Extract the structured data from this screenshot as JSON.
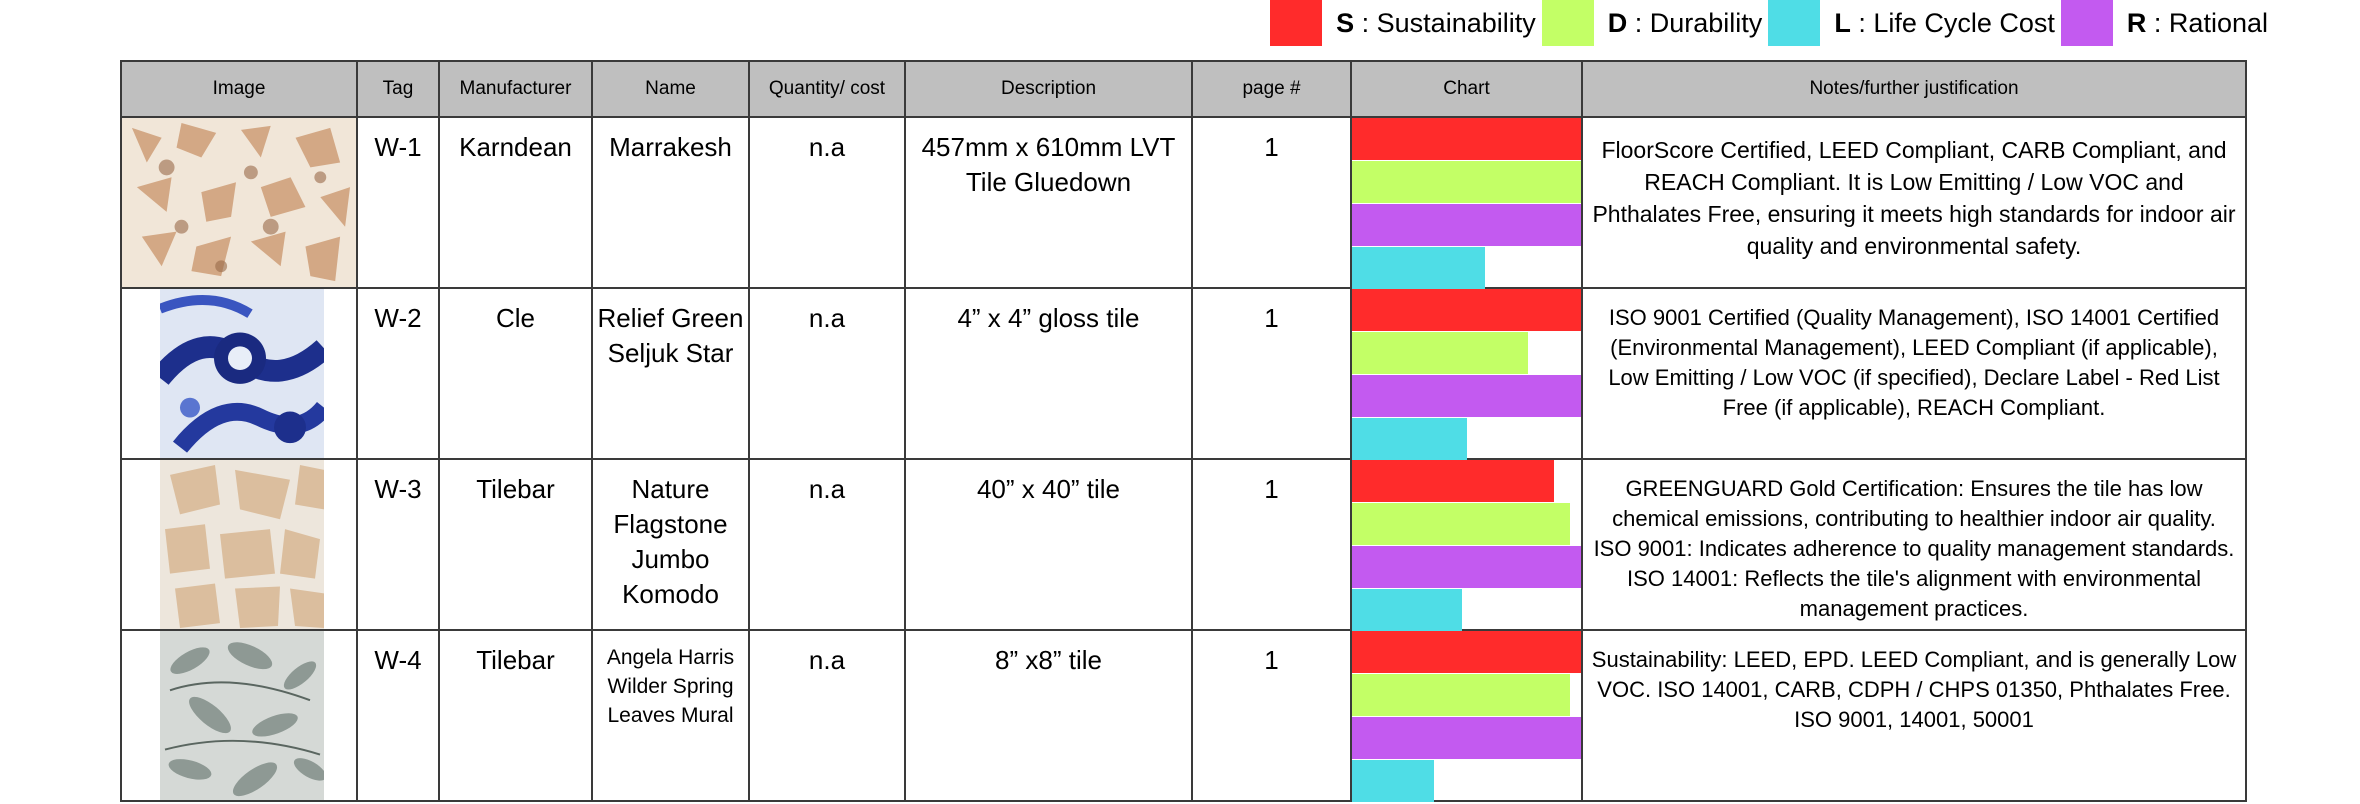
{
  "legend": [
    {
      "key": "S",
      "label": ": Sustainability",
      "color": "#ff2b2b"
    },
    {
      "key": "D",
      "label": ": Durability",
      "color": "#c3ff66"
    },
    {
      "key": "L",
      "label": ": Life Cycle Cost",
      "color": "#4fdde6"
    },
    {
      "key": "R",
      "label": ": Rational",
      "color": "#c35af0"
    }
  ],
  "headers": {
    "image": "Image",
    "tag": "Tag",
    "manufacturer": "Manufacturer",
    "name": "Name",
    "quantity": "Quantity/ cost",
    "description": "Description",
    "page": "page #",
    "chart": "Chart",
    "notes": "Notes/further justification"
  },
  "rows": [
    {
      "tile": "moroccan-pattern",
      "tag": "W-1",
      "manufacturer": "Karndean",
      "name": "Marrakesh",
      "quantity": "n.a",
      "description": "457mm x 610mm LVT Tile Gluedown",
      "page": "1",
      "chart": {
        "S": 1.0,
        "D": 1.0,
        "R": 1.0,
        "L": 0.58
      },
      "notes": "FloorScore Certified, LEED Compliant, CARB Compliant, and REACH Compliant. It is Low Emitting / Low VOC and Phthalates Free, ensuring it meets high standards for indoor air quality and environmental safety."
    },
    {
      "tile": "blue-seljuk",
      "tag": "W-2",
      "manufacturer": "Cle",
      "name": "Relief Green Seljuk Star",
      "quantity": "n.a",
      "description": "4” x 4” gloss tile",
      "page": "1",
      "chart": {
        "S": 1.0,
        "D": 0.77,
        "R": 1.0,
        "L": 0.5
      },
      "notes": "ISO 9001 Certified (Quality Management), ISO 14001 Certified (Environmental Management), LEED Compliant (if applicable), Low Emitting / Low VOC (if specified), Declare Label - Red List Free (if applicable), REACH Compliant."
    },
    {
      "tile": "flagstone",
      "tag": "W-3",
      "manufacturer": "Tilebar",
      "name": "Nature Flagstone Jumbo Komodo",
      "quantity": "n.a",
      "description": "40” x 40” tile",
      "page": "1",
      "chart": {
        "S": 0.88,
        "D": 0.95,
        "R": 1.0,
        "L": 0.48
      },
      "notes": "GREENGUARD Gold Certification: Ensures the tile has low chemical emissions, contributing to healthier indoor air quality. ISO 9001: Indicates adherence to quality management standards. ISO 14001: Reflects the tile's alignment with environmental management practices."
    },
    {
      "tile": "leaves-mural",
      "tag": "W-4",
      "manufacturer": "Tilebar",
      "name": "Angela Harris Wilder Spring Leaves Mural",
      "quantity": "n.a",
      "description": "8” x8” tile",
      "page": "1",
      "chart": {
        "S": 1.0,
        "D": 0.95,
        "R": 1.0,
        "L": 0.36
      },
      "notes": "Sustainability: LEED, EPD. LEED Compliant, and is generally Low VOC. ISO 14001, CARB, CDPH / CHPS 01350, Phthalates Free. ISO 9001, 14001, 50001"
    }
  ]
}
